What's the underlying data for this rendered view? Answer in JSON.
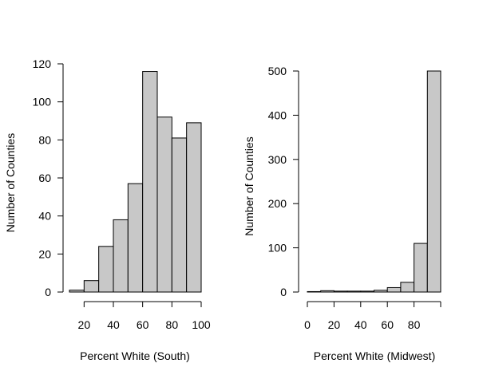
{
  "chart_data": [
    {
      "type": "bar",
      "title": "",
      "xlabel": "Percent White (South)",
      "ylabel": "Number of Counties",
      "bin_edges": [
        10,
        20,
        30,
        40,
        50,
        60,
        70,
        80,
        90,
        100
      ],
      "values": [
        1,
        6,
        24,
        38,
        57,
        116,
        92,
        81,
        89
      ],
      "xticks": [
        20,
        40,
        60,
        80,
        100
      ],
      "yticks": [
        0,
        20,
        40,
        60,
        80,
        100,
        120
      ],
      "xlim": [
        10,
        100
      ],
      "ylim": [
        0,
        120
      ],
      "grid": false
    },
    {
      "type": "bar",
      "title": "",
      "xlabel": "Percent White (Midwest)",
      "ylabel": "Number of Counties",
      "bin_edges": [
        0,
        10,
        20,
        30,
        40,
        50,
        60,
        70,
        80,
        90,
        100
      ],
      "values": [
        1,
        3,
        2,
        2,
        2,
        4,
        10,
        22,
        110,
        500
      ],
      "xticks": [
        0,
        20,
        40,
        60,
        80
      ],
      "yticks": [
        0,
        100,
        200,
        300,
        400,
        500
      ],
      "xlim": [
        0,
        100
      ],
      "ylim": [
        0,
        500
      ],
      "grid": false
    }
  ]
}
